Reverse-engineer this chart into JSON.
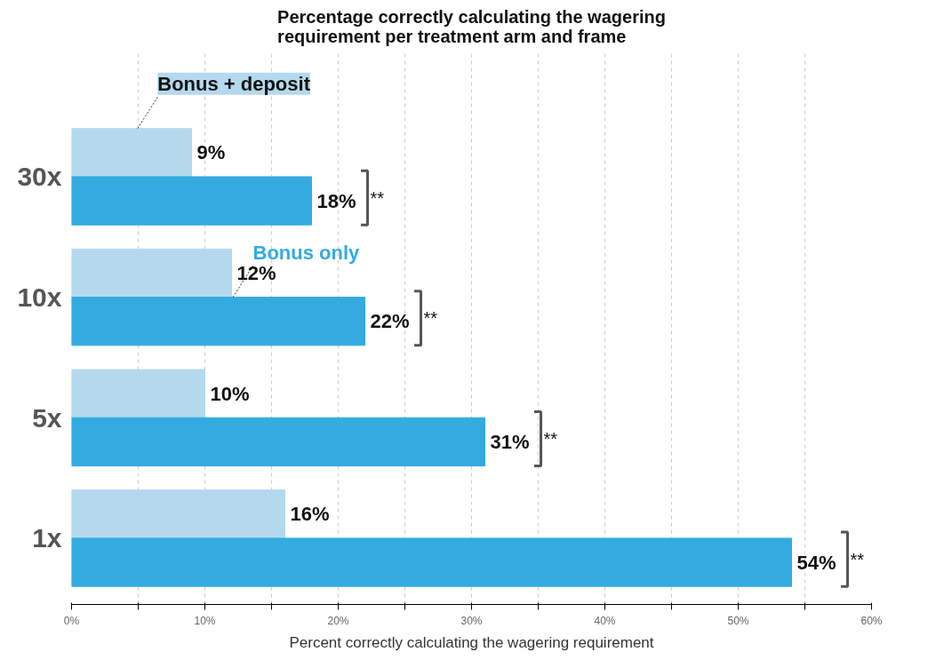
{
  "chart_data": {
    "type": "bar",
    "orientation": "horizontal",
    "title": "Percentage correctly calculating the wagering\nrequirement per treatment arm and frame",
    "xlabel": "Percent correctly calculating the wagering requirement",
    "categories": [
      "30x",
      "10x",
      "5x",
      "1x"
    ],
    "series": [
      {
        "name": "Bonus + deposit",
        "color": "#b4d9ee",
        "values": [
          9,
          12,
          10,
          16
        ],
        "value_labels": [
          "9%",
          "12%",
          "10%",
          "16%"
        ]
      },
      {
        "name": "Bonus only",
        "color": "#33abe0",
        "values": [
          18,
          22,
          31,
          54
        ],
        "value_labels": [
          "18%",
          "22%",
          "31%",
          "54%"
        ]
      }
    ],
    "xlim": [
      0,
      60
    ],
    "xticks": [
      {
        "value": 0,
        "label": "0%"
      },
      {
        "value": 5,
        "label": null
      },
      {
        "value": 10,
        "label": "10%"
      },
      {
        "value": 15,
        "label": null
      },
      {
        "value": 20,
        "label": "20%"
      },
      {
        "value": 25,
        "label": null
      },
      {
        "value": 30,
        "label": "30%"
      },
      {
        "value": 35,
        "label": null
      },
      {
        "value": 40,
        "label": "40%"
      },
      {
        "value": 45,
        "label": null
      },
      {
        "value": 50,
        "label": "50%"
      },
      {
        "value": 55,
        "label": null
      },
      {
        "value": 60,
        "label": "60%"
      }
    ],
    "grid": "x",
    "annotations": [
      "**",
      "**",
      "**",
      "**"
    ]
  }
}
